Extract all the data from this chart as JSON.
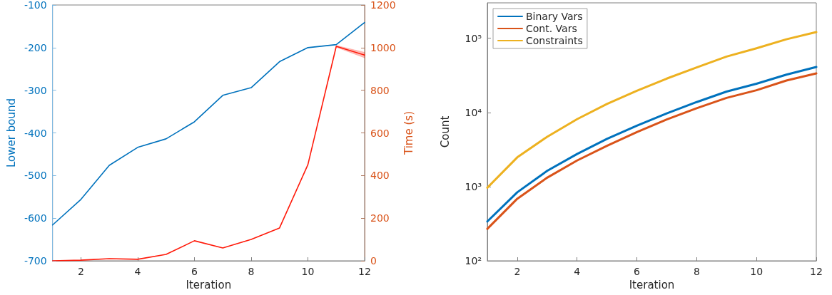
{
  "chart_data": [
    {
      "type": "line",
      "xlabel": "Iteration",
      "ylabel": "Lower bound",
      "y2label": "Time (s)",
      "x": [
        1,
        2,
        3,
        4,
        5,
        6,
        7,
        8,
        9,
        10,
        11,
        12
      ],
      "xlim": [
        1,
        12
      ],
      "xticks": [
        2,
        4,
        6,
        8,
        10,
        12
      ],
      "ylim": [
        -700,
        -100
      ],
      "yticks": [
        -700,
        -600,
        -500,
        -400,
        -300,
        -200,
        -100
      ],
      "y2lim": [
        0,
        1200
      ],
      "y2ticks": [
        0,
        200,
        400,
        600,
        800,
        1000,
        1200
      ],
      "grid": false,
      "legend": false,
      "marker": "none",
      "line_style": "solid",
      "series": [
        {
          "color": "#0072bd",
          "values": [
            -616,
            -556,
            -476,
            -434,
            -414,
            -374,
            -312,
            -294,
            -233,
            -200,
            -193,
            -141
          ]
        },
        {
          "color": "#ff1a0a",
          "axis": "y2",
          "values": [
            0,
            3,
            10,
            7,
            30,
            94,
            60,
            100,
            154,
            451,
            1006,
            965
          ],
          "lower": [
            null,
            null,
            null,
            null,
            null,
            null,
            null,
            null,
            null,
            null,
            1002,
            952
          ],
          "upper": [
            null,
            null,
            null,
            null,
            null,
            null,
            null,
            null,
            null,
            null,
            1010,
            978
          ]
        }
      ]
    },
    {
      "type": "line",
      "xlabel": "Iteration",
      "ylabel": "Count",
      "x": [
        1,
        2,
        3,
        4,
        5,
        6,
        7,
        8,
        9,
        10,
        11,
        12
      ],
      "xlim": [
        1,
        12
      ],
      "xticks": [
        2,
        4,
        6,
        8,
        10,
        12
      ],
      "log": "y",
      "ylim": [
        100,
        300000
      ],
      "yticks": [
        {
          "value": 100,
          "label": "10²"
        },
        {
          "value": 1000,
          "label": "10³"
        },
        {
          "value": 10000,
          "label": "10⁴"
        },
        {
          "value": 100000,
          "label": "10⁵"
        }
      ],
      "grid": false,
      "legend": "top left",
      "marker": "none",
      "line_style": "solid",
      "series": [
        {
          "name": "Binary Vars",
          "color": "#0072bd",
          "values": [
            339,
            838,
            1630,
            2750,
            4410,
            6640,
            9690,
            13800,
            19100,
            24400,
            32300,
            41000
          ]
        },
        {
          "name": "Cont. Vars",
          "color": "#d95319",
          "values": [
            270,
            686,
            1320,
            2250,
            3550,
            5440,
            8050,
            11400,
            15700,
            19900,
            26900,
            33600
          ]
        },
        {
          "name": "Constraints",
          "color": "#edb120",
          "values": [
            968,
            2480,
            4700,
            8110,
            13000,
            19600,
            28600,
            40400,
            56600,
            73200,
            96800,
            121000
          ]
        }
      ]
    }
  ]
}
